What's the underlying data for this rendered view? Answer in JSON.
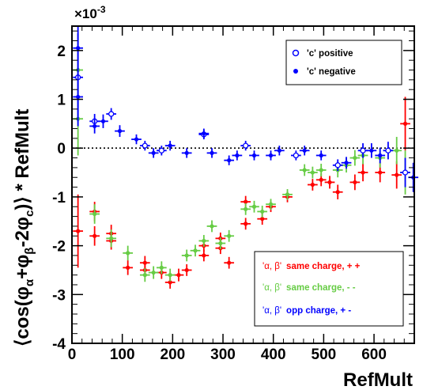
{
  "chart_data": {
    "type": "scatter",
    "xlabel": "RefMult",
    "ylabel": "⟨cos(φα+φβ-2φc)⟩ * RefMult",
    "ylabel_parts": {
      "prefix": "⟨cos(φ",
      "sub_a": "α",
      "mid1": "+φ",
      "sub_b": "β",
      "mid2": "-2φ",
      "sub_c": "c",
      "suffix": ")⟩ * RefMult"
    },
    "y_multiplier": "×10",
    "y_multiplier_exp": "-3",
    "xlim": [
      0,
      680
    ],
    "ylim": [
      -4,
      2.5
    ],
    "x_ticks": [
      0,
      100,
      200,
      300,
      400,
      500,
      600
    ],
    "y_ticks": [
      -4,
      -3,
      -2,
      -1,
      0,
      1,
      2
    ],
    "reference_line": 0,
    "legend_top": {
      "position": "top-right",
      "entries": [
        {
          "label": "'c' positive",
          "marker": "open-circle",
          "color": "#0000ff"
        },
        {
          "label": "'c' negative",
          "marker": "filled-circle",
          "color": "#0000ff"
        }
      ]
    },
    "legend_bottom": {
      "position": "bottom-right",
      "entries": [
        {
          "quote_text": "'α, β'",
          "desc": "same charge, + +",
          "color": "#ff0000"
        },
        {
          "quote_text": "'α, β'",
          "desc": "same charge, - -",
          "color": "#66cc44"
        },
        {
          "quote_text": "'α, β'",
          "desc": "opp charge, + -",
          "color": "#0000ff"
        }
      ]
    },
    "series": [
      {
        "name": "same charge, + +",
        "color": "#ff0000",
        "x_err": 10,
        "points": [
          [
            12,
            -1.7,
            0.75
          ],
          [
            45,
            -1.3,
            0.2
          ],
          [
            45,
            -1.8,
            0.2
          ],
          [
            78,
            -1.75,
            0.18
          ],
          [
            78,
            -1.9,
            0.18
          ],
          [
            111,
            -2.45,
            0.15
          ],
          [
            145,
            -2.5,
            0.14
          ],
          [
            145,
            -2.35,
            0.14
          ],
          [
            178,
            -2.55,
            0.13
          ],
          [
            195,
            -2.75,
            0.13
          ],
          [
            212,
            -2.6,
            0.13
          ],
          [
            228,
            -2.5,
            0.12
          ],
          [
            262,
            -2.0,
            0.12
          ],
          [
            262,
            -2.2,
            0.12
          ],
          [
            295,
            -1.85,
            0.12
          ],
          [
            295,
            -2.05,
            0.12
          ],
          [
            312,
            -2.35,
            0.12
          ],
          [
            345,
            -1.1,
            0.12
          ],
          [
            345,
            -1.55,
            0.12
          ],
          [
            378,
            -1.45,
            0.12
          ],
          [
            395,
            -1.2,
            0.11
          ],
          [
            428,
            -1.0,
            0.11
          ],
          [
            478,
            -0.75,
            0.12
          ],
          [
            495,
            -0.65,
            0.13
          ],
          [
            512,
            -0.7,
            0.13
          ],
          [
            528,
            -0.9,
            0.15
          ],
          [
            562,
            -0.7,
            0.16
          ],
          [
            578,
            -0.5,
            0.18
          ],
          [
            612,
            -0.5,
            0.2
          ],
          [
            645,
            -0.55,
            0.28
          ],
          [
            662,
            0.5,
            0.55
          ]
        ]
      },
      {
        "name": "same charge, - -",
        "color": "#66cc44",
        "x_err": 10,
        "points": [
          [
            12,
            1.6,
            0.75
          ],
          [
            12,
            0.6,
            0.75
          ],
          [
            45,
            -1.35,
            0.2
          ],
          [
            78,
            -1.85,
            0.18
          ],
          [
            111,
            -2.15,
            0.15
          ],
          [
            145,
            -2.6,
            0.14
          ],
          [
            162,
            -2.55,
            0.13
          ],
          [
            178,
            -2.45,
            0.13
          ],
          [
            195,
            -2.6,
            0.13
          ],
          [
            228,
            -2.2,
            0.12
          ],
          [
            245,
            -2.1,
            0.12
          ],
          [
            262,
            -1.9,
            0.12
          ],
          [
            278,
            -1.6,
            0.12
          ],
          [
            295,
            -1.95,
            0.12
          ],
          [
            312,
            -1.8,
            0.12
          ],
          [
            345,
            -1.25,
            0.12
          ],
          [
            362,
            -1.2,
            0.12
          ],
          [
            378,
            -1.3,
            0.12
          ],
          [
            395,
            -1.15,
            0.11
          ],
          [
            428,
            -0.95,
            0.11
          ],
          [
            462,
            -0.45,
            0.12
          ],
          [
            478,
            -0.5,
            0.12
          ],
          [
            495,
            -0.45,
            0.13
          ],
          [
            528,
            -0.45,
            0.15
          ],
          [
            545,
            -0.35,
            0.15
          ],
          [
            562,
            -0.2,
            0.16
          ],
          [
            578,
            -0.15,
            0.18
          ],
          [
            612,
            -0.2,
            0.2
          ],
          [
            645,
            -0.05,
            0.28
          ],
          [
            662,
            -0.5,
            0.45
          ]
        ]
      },
      {
        "name": "opp charge, 'c' positive",
        "color": "#0000ff",
        "x_err": 10,
        "points": [
          [
            12,
            1.45,
            0.9
          ],
          [
            45,
            0.55,
            0.15
          ],
          [
            78,
            0.7,
            0.12
          ],
          [
            145,
            0.05,
            0.1
          ],
          [
            178,
            -0.05,
            0.1
          ],
          [
            262,
            0.28,
            0.1
          ],
          [
            345,
            0.05,
            0.1
          ],
          [
            445,
            -0.15,
            0.1
          ],
          [
            528,
            -0.35,
            0.12
          ],
          [
            578,
            -0.05,
            0.15
          ],
          [
            628,
            -0.05,
            0.18
          ],
          [
            662,
            -0.5,
            0.3
          ]
        ]
      },
      {
        "name": "opp charge, 'c' negative",
        "color": "#0000ff",
        "x_err": 10,
        "points": [
          [
            12,
            2.05,
            0.45
          ],
          [
            12,
            1.05,
            0.6
          ],
          [
            45,
            0.45,
            0.15
          ],
          [
            62,
            0.55,
            0.14
          ],
          [
            95,
            0.35,
            0.12
          ],
          [
            128,
            0.18,
            0.1
          ],
          [
            162,
            -0.1,
            0.1
          ],
          [
            195,
            0.05,
            0.1
          ],
          [
            228,
            -0.1,
            0.1
          ],
          [
            262,
            0.3,
            0.1
          ],
          [
            278,
            -0.1,
            0.1
          ],
          [
            312,
            -0.25,
            0.1
          ],
          [
            328,
            -0.15,
            0.1
          ],
          [
            362,
            -0.15,
            0.1
          ],
          [
            395,
            -0.15,
            0.1
          ],
          [
            412,
            -0.05,
            0.1
          ],
          [
            462,
            -0.05,
            0.1
          ],
          [
            495,
            -0.15,
            0.1
          ],
          [
            545,
            -0.3,
            0.12
          ],
          [
            595,
            -0.05,
            0.15
          ],
          [
            612,
            -0.15,
            0.16
          ],
          [
            678,
            -0.6,
            0.3
          ]
        ]
      }
    ]
  }
}
